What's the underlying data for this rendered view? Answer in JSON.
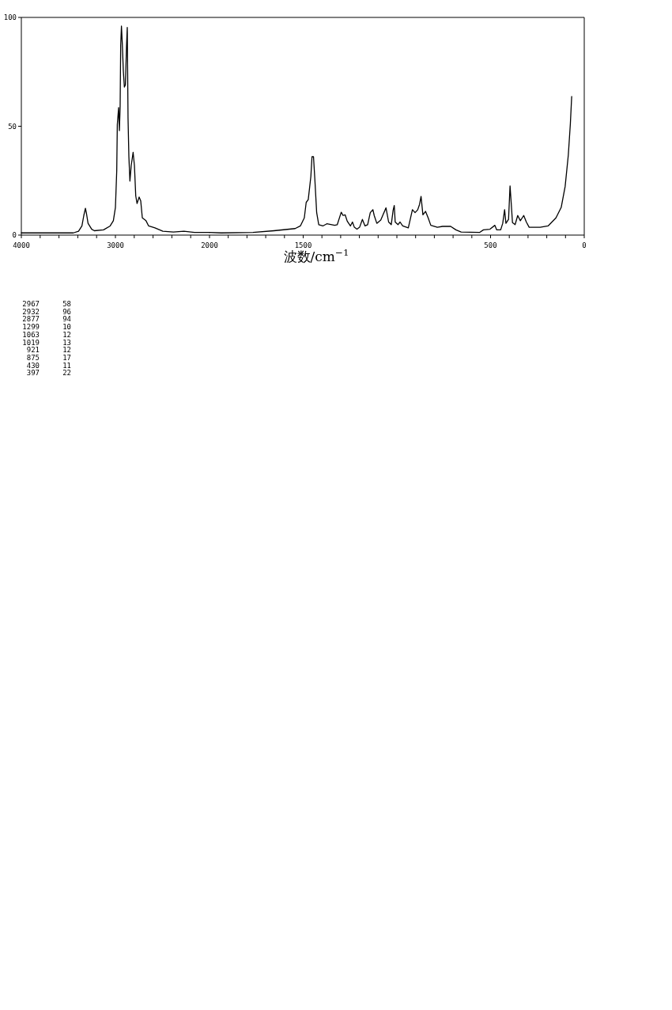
{
  "chart_data": [
    {
      "type": "line",
      "color": "#000000",
      "xlim": [
        4000,
        2000
      ],
      "ylim": [
        0,
        100
      ],
      "xticks": [
        4000,
        {
          "value": 3800,
          "label": null
        },
        {
          "value": 3600,
          "label": null
        },
        {
          "value": 3400,
          "label": null
        },
        {
          "value": 3200,
          "label": null
        },
        3000,
        {
          "value": 2800,
          "label": null
        },
        {
          "value": 2600,
          "label": null
        },
        {
          "value": 2400,
          "label": null
        },
        {
          "value": 2200,
          "label": null
        },
        2000
      ],
      "yticks": [
        0,
        50,
        100
      ],
      "x": [
        4000,
        3448,
        3392,
        3356,
        3336,
        3319,
        3308,
        3291,
        3252,
        3224,
        3126,
        3056,
        3022,
        3000,
        2986,
        2980,
        2966,
        2958,
        2950,
        2944,
        2936,
        2927,
        2916,
        2905,
        2894,
        2882,
        2874,
        2866,
        2857,
        2846,
        2832,
        2812,
        2798,
        2784,
        2770,
        2748,
        2731,
        2714,
        2675,
        2647,
        2580,
        2496,
        2384,
        2272,
        2160,
        2000
      ],
      "values": [
        1.0,
        1.0,
        1.8,
        4.2,
        9,
        12.3,
        10,
        5.4,
        2.7,
        2.0,
        2.4,
        4.2,
        6.6,
        12.7,
        29.6,
        50.7,
        58.6,
        48,
        58.6,
        87,
        96,
        88,
        75.5,
        68,
        69,
        87,
        95.4,
        53.7,
        36,
        24.8,
        32,
        38,
        32,
        18,
        14.5,
        17.5,
        15.7,
        7.9,
        6.6,
        4.2,
        3.3,
        1.8,
        1.4,
        1.8,
        1.2,
        1.2
      ],
      "annotations": [
        "2967 58",
        "2932 96",
        "2877 94",
        "1299 10",
        "1063 12",
        "1019 13",
        "921 12",
        "875 17",
        "430 11",
        "397 22"
      ]
    },
    {
      "type": "line",
      "color": "#000000",
      "xlim": [
        2000,
        0
      ],
      "ylim": [
        0,
        100
      ],
      "tick_labels": "x",
      "xlabel": "波数/cm$^{−1}$",
      "xticks": [
        {
          "value": 1900,
          "label": null
        },
        {
          "value": 1800,
          "label": null
        },
        {
          "value": 1700,
          "label": null
        },
        {
          "value": 1600,
          "label": null
        },
        1500,
        {
          "value": 1400,
          "label": null
        },
        {
          "value": 1300,
          "label": null
        },
        {
          "value": 1200,
          "label": null
        },
        {
          "value": 1100,
          "label": null
        },
        {
          "value": 1000,
          "label": null
        },
        {
          "value": 900,
          "label": null
        },
        {
          "value": 800,
          "label": null
        },
        {
          "value": 700,
          "label": null
        },
        {
          "value": 600,
          "label": null
        },
        500,
        {
          "value": 400,
          "label": null
        },
        {
          "value": 300,
          "label": null
        },
        {
          "value": 200,
          "label": null
        },
        {
          "value": 100,
          "label": null
        },
        0
      ],
      "x": [
        2000,
        1937,
        1768,
        1656,
        1543,
        1515,
        1494,
        1484,
        1473,
        1459,
        1453,
        1445,
        1438,
        1428,
        1417,
        1395,
        1374,
        1332,
        1318,
        1297,
        1287,
        1276,
        1265,
        1248,
        1237,
        1227,
        1213,
        1199,
        1184,
        1170,
        1156,
        1142,
        1128,
        1121,
        1107,
        1086,
        1072,
        1058,
        1044,
        1030,
        1020,
        1014,
        1009,
        994,
        983,
        969,
        939,
        927,
        917,
        903,
        889,
        879,
        871,
        861,
        847,
        833,
        819,
        784,
        756,
        713,
        685,
        657,
        559,
        538,
        503,
        477,
        467,
        446,
        435,
        425,
        418,
        404,
        396,
        390,
        383,
        369,
        355,
        341,
        323,
        309,
        294,
        235,
        193,
        151,
        123,
        102,
        85,
        74,
        67
      ],
      "values": [
        1.2,
        1.0,
        1.2,
        2.0,
        3.0,
        4.2,
        7.9,
        15,
        16.3,
        27,
        36,
        36,
        26,
        10.3,
        4.8,
        4.2,
        5.2,
        4.5,
        4.8,
        10.5,
        9,
        9.3,
        6.4,
        4.2,
        6,
        3.6,
        2.7,
        3.6,
        7.2,
        4.2,
        4.8,
        10.3,
        11.7,
        9,
        5.4,
        6.9,
        9.7,
        12.5,
        6,
        4.8,
        11.4,
        13.6,
        6,
        4.8,
        6,
        4.2,
        3.3,
        7.9,
        11.7,
        10.3,
        11.6,
        14.1,
        17.8,
        9.3,
        10.9,
        7.9,
        4.5,
        3.6,
        4.0,
        4.0,
        2.4,
        1.4,
        1.2,
        2.4,
        2.7,
        4.5,
        2.4,
        2.4,
        5.4,
        11.7,
        5.4,
        7.2,
        22.6,
        15,
        5.7,
        4.8,
        9,
        6.6,
        9,
        6,
        3.6,
        3.6,
        4.2,
        7.9,
        12.7,
        22.3,
        36.8,
        51.3,
        63.7
      ]
    }
  ]
}
